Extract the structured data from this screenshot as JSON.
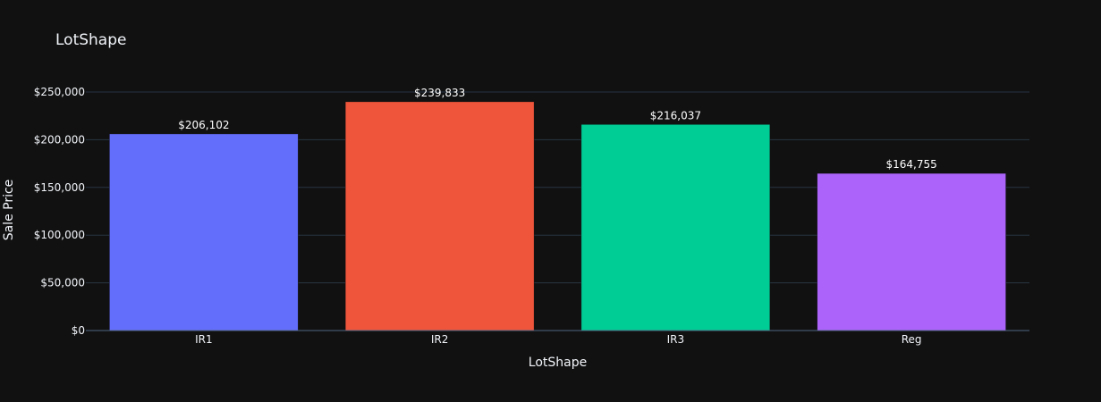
{
  "chart_data": {
    "type": "bar",
    "title": "LotShape",
    "xlabel": "LotShape",
    "ylabel": "Sale Price",
    "categories": [
      "IR1",
      "IR2",
      "IR3",
      "Reg"
    ],
    "values": [
      206102,
      239833,
      216037,
      164755
    ],
    "value_labels": [
      "$206,102",
      "$239,833",
      "$216,037",
      "$164,755"
    ],
    "colors": [
      "#636efa",
      "#ef553b",
      "#00cc96",
      "#ab63fa"
    ],
    "ylim": [
      0,
      250000
    ],
    "yticks": [
      0,
      50000,
      100000,
      150000,
      200000,
      250000
    ],
    "ytick_labels": [
      "$0",
      "$50,000",
      "$100,000",
      "$150,000",
      "$200,000",
      "$250,000"
    ],
    "grid": true,
    "legend": "none",
    "background": "#111111"
  }
}
